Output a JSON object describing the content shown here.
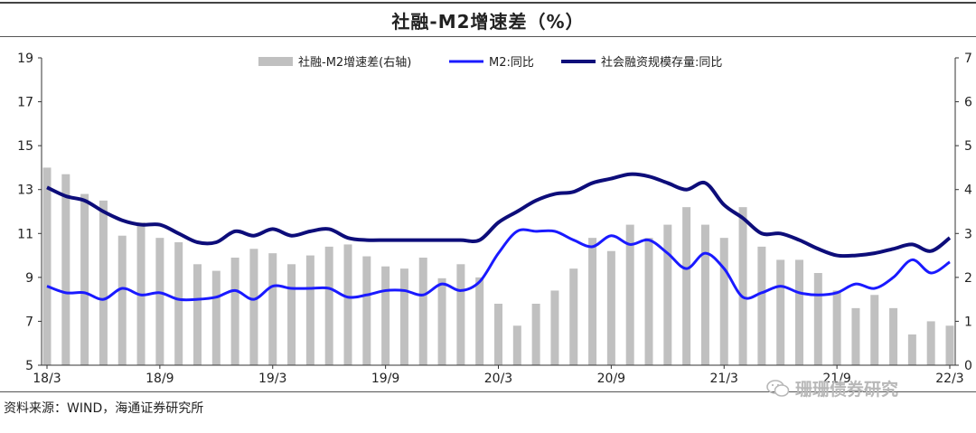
{
  "title": "社融-M2增速差（%）",
  "source": "资料来源：WIND，海通证券研究所",
  "watermark": {
    "text": "珊珊债券研究",
    "icon": "wechat-icon"
  },
  "colors": {
    "bar": "#c0c0c0",
    "m2": "#1a1aff",
    "tsf": "#0d0d7a",
    "axis": "#333333"
  },
  "chart_data": {
    "type": "bar+line",
    "x": [
      "18/3",
      "18/4",
      "18/5",
      "18/6",
      "18/7",
      "18/8",
      "18/9",
      "18/10",
      "18/11",
      "18/12",
      "19/1",
      "19/2",
      "19/3",
      "19/4",
      "19/5",
      "19/6",
      "19/7",
      "19/8",
      "19/9",
      "19/10",
      "19/11",
      "19/12",
      "20/1",
      "20/2",
      "20/3",
      "20/4",
      "20/5",
      "20/6",
      "20/7",
      "20/8",
      "20/9",
      "20/10",
      "20/11",
      "20/12",
      "21/1",
      "21/2",
      "21/3",
      "21/4",
      "21/5",
      "21/6",
      "21/7",
      "21/8",
      "21/9",
      "21/10",
      "21/11",
      "21/12",
      "22/1",
      "22/2",
      "22/3"
    ],
    "x_tick_labels": [
      "18/3",
      "18/9",
      "19/3",
      "19/9",
      "20/3",
      "20/9",
      "21/3",
      "21/9",
      "22/3"
    ],
    "left_axis": {
      "min": 5,
      "max": 19,
      "ticks": [
        5,
        7,
        9,
        11,
        13,
        15,
        17,
        19
      ]
    },
    "right_axis": {
      "min": 0,
      "max": 7,
      "ticks": [
        0,
        1,
        2,
        3,
        4,
        5,
        6,
        7
      ]
    },
    "legend_position": "top",
    "series": [
      {
        "name": "社融-M2增速差(右轴)",
        "type": "bar",
        "axis": "right",
        "values": [
          4.5,
          4.35,
          3.9,
          3.75,
          2.95,
          3.25,
          2.9,
          2.8,
          2.3,
          2.15,
          2.45,
          2.65,
          2.55,
          2.3,
          2.5,
          2.7,
          2.75,
          2.48,
          2.25,
          2.2,
          2.45,
          1.98,
          2.3,
          2.0,
          1.4,
          0.9,
          1.4,
          1.7,
          2.2,
          2.9,
          2.6,
          3.2,
          2.9,
          3.2,
          3.6,
          3.2,
          2.9,
          3.6,
          2.7,
          2.4,
          2.4,
          2.1,
          1.7,
          1.3,
          1.6,
          1.3,
          0.7,
          1.0,
          0.9
        ]
      },
      {
        "name": "M2:同比",
        "type": "line",
        "axis": "left",
        "values": [
          8.6,
          8.3,
          8.3,
          8.0,
          8.5,
          8.2,
          8.3,
          8.0,
          8.0,
          8.1,
          8.4,
          8.0,
          8.6,
          8.5,
          8.5,
          8.5,
          8.1,
          8.2,
          8.4,
          8.4,
          8.2,
          8.7,
          8.4,
          8.8,
          10.1,
          11.1,
          11.1,
          11.1,
          10.7,
          10.4,
          10.9,
          10.5,
          10.7,
          10.1,
          9.4,
          10.1,
          9.4,
          8.1,
          8.3,
          8.6,
          8.3,
          8.2,
          8.3,
          8.7,
          8.5,
          9.0,
          9.8,
          9.2,
          9.7
        ]
      },
      {
        "name": "社会融资规模存量:同比",
        "type": "line",
        "axis": "left",
        "values": [
          13.1,
          12.7,
          12.5,
          12.0,
          11.6,
          11.4,
          11.4,
          11.0,
          10.6,
          10.6,
          11.1,
          10.9,
          11.2,
          10.9,
          11.1,
          11.2,
          10.8,
          10.7,
          10.7,
          10.7,
          10.7,
          10.7,
          10.7,
          10.7,
          11.5,
          12.0,
          12.5,
          12.8,
          12.9,
          13.3,
          13.5,
          13.7,
          13.6,
          13.3,
          13.0,
          13.3,
          12.3,
          11.7,
          11.0,
          11.0,
          10.7,
          10.3,
          10.0,
          10.0,
          10.1,
          10.3,
          10.5,
          10.2,
          10.8
        ]
      }
    ]
  }
}
